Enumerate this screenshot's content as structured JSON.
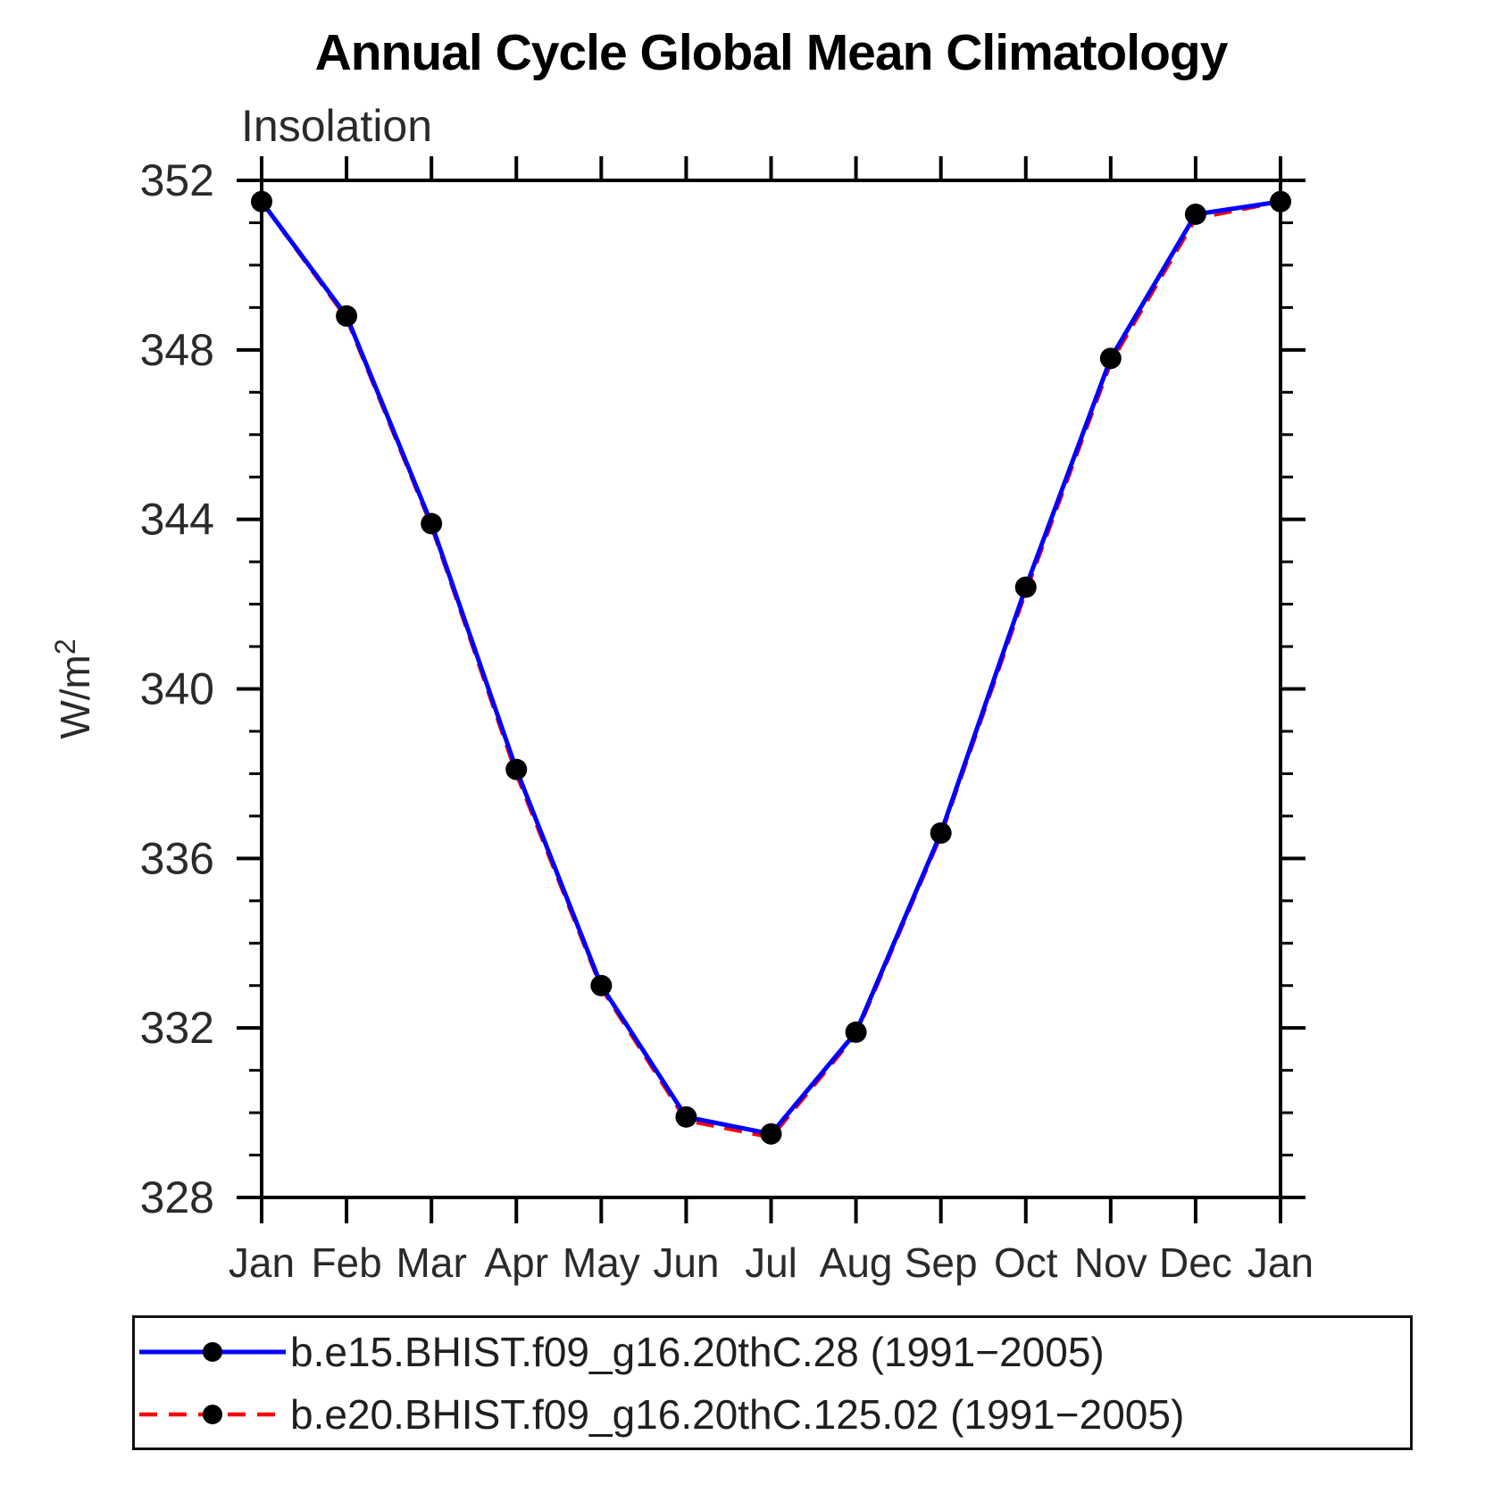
{
  "chart_data": {
    "type": "line",
    "title": "Annual Cycle Global Mean Climatology",
    "subtitle": "Insolation",
    "ylabel": "W/m²",
    "xlabel": "",
    "categories": [
      "Jan",
      "Feb",
      "Mar",
      "Apr",
      "May",
      "Jun",
      "Jul",
      "Aug",
      "Sep",
      "Oct",
      "Nov",
      "Dec",
      "Jan"
    ],
    "ylim": [
      328,
      352
    ],
    "ytick_major": 4,
    "ytick_minor": 1,
    "ytick_labels": [
      "352",
      "348",
      "344",
      "340",
      "336",
      "332",
      "328"
    ],
    "grid": false,
    "legend_position": "bottom",
    "axis_color": "#000000",
    "text_color": "#2a2a2a",
    "series": [
      {
        "name": "b.e15.BHIST.f09_g16.20thC.28 (1991−2005)",
        "color": "#0000ff",
        "style": "solid",
        "marker": "circle",
        "marker_color": "#000000",
        "values": [
          351.5,
          348.8,
          343.9,
          338.1,
          333.0,
          329.9,
          329.5,
          331.9,
          336.6,
          342.4,
          347.8,
          351.2,
          351.5
        ]
      },
      {
        "name": "b.e20.BHIST.f09_g16.20thC.125.02 (1991−2005)",
        "color": "#ff0000",
        "style": "dashed",
        "marker": "circle",
        "marker_color": "#000000",
        "values": [
          351.5,
          348.75,
          343.85,
          338.0,
          332.95,
          329.82,
          329.42,
          331.85,
          336.55,
          342.3,
          347.7,
          351.1,
          351.5
        ]
      }
    ]
  }
}
